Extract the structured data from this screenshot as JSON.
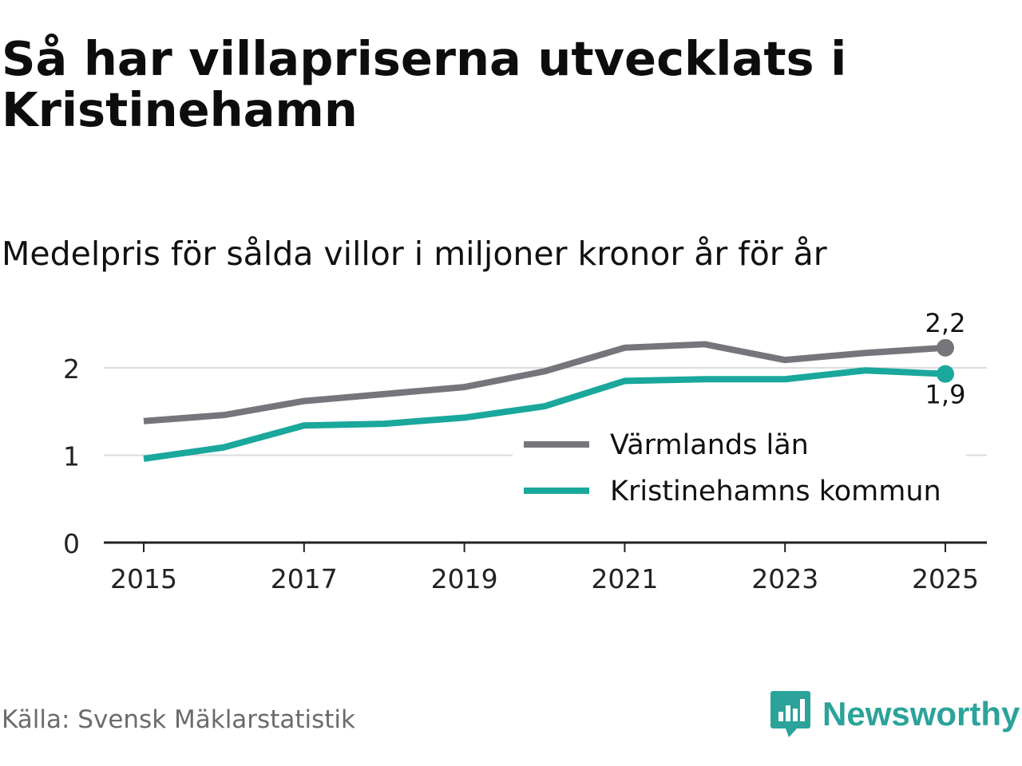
{
  "title": "Så har villapriserna utvecklats i Kristinehamn",
  "subtitle": "Medelpris för sålda villor i miljoner kronor år för år",
  "source": "Källa: Svensk Mäklarstatistik",
  "brand": {
    "name": "Newsworthy",
    "icon": "newsworthy-logo-icon",
    "color": "#2ba39a"
  },
  "chart_data": {
    "type": "line",
    "title": "Så har villapriserna utvecklats i Kristinehamn",
    "subtitle": "Medelpris för sålda villor i miljoner kronor år för år",
    "xlabel": "",
    "ylabel": "",
    "x": [
      2015,
      2016,
      2017,
      2018,
      2019,
      2020,
      2021,
      2022,
      2023,
      2024,
      2025
    ],
    "xlim": [
      2014.5,
      2025.5
    ],
    "ylim": [
      0,
      2.5
    ],
    "xticks": [
      2015,
      2017,
      2019,
      2021,
      2023,
      2025
    ],
    "xtick_labels": [
      "2015",
      "2017",
      "2019",
      "2021",
      "2023",
      "2025"
    ],
    "yticks": [
      0,
      1,
      2
    ],
    "ytick_labels": [
      "0",
      "1",
      "2"
    ],
    "grid": true,
    "legend_position": "bottom-right",
    "series": [
      {
        "name": "Värmlands län",
        "color": "#76757b",
        "values": [
          1.39,
          1.46,
          1.62,
          1.7,
          1.78,
          1.96,
          2.23,
          2.27,
          2.09,
          2.17,
          2.23
        ],
        "end_label": "2,2"
      },
      {
        "name": "Kristinehamns kommun",
        "color": "#1aa79c",
        "values": [
          0.96,
          1.09,
          1.34,
          1.36,
          1.43,
          1.56,
          1.85,
          1.87,
          1.87,
          1.97,
          1.93
        ],
        "end_label": "1,9"
      }
    ]
  }
}
